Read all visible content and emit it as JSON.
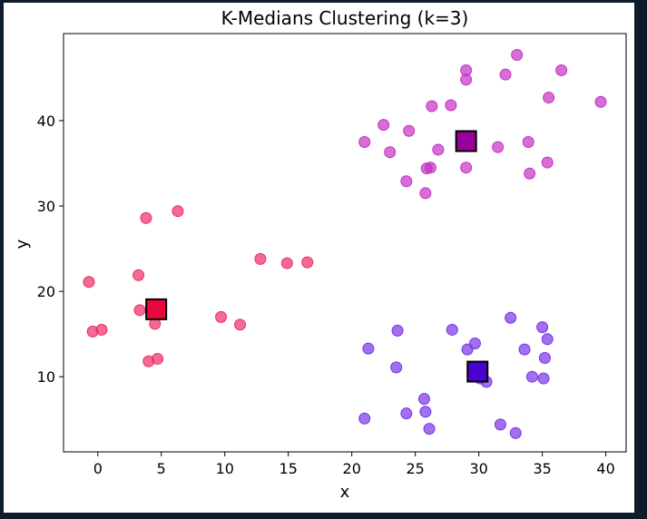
{
  "chart_data": {
    "type": "scatter",
    "title": "K-Medians Clustering (k=3)",
    "xlabel": "x",
    "ylabel": "y",
    "xlim": [
      -2.7,
      41.6
    ],
    "ylim": [
      1.2,
      50.2
    ],
    "xticks": [
      0,
      5,
      10,
      15,
      20,
      25,
      30,
      35,
      40
    ],
    "yticks": [
      10,
      20,
      30,
      40
    ],
    "grid": false,
    "series": [
      {
        "cluster": 1,
        "color": "#ee2c64",
        "points": [
          [
            -0.7,
            21.1
          ],
          [
            -0.4,
            15.3
          ],
          [
            0.3,
            15.5
          ],
          [
            3.2,
            21.9
          ],
          [
            3.3,
            17.8
          ],
          [
            3.8,
            28.6
          ],
          [
            4.0,
            11.8
          ],
          [
            4.5,
            16.2
          ],
          [
            4.7,
            12.1
          ],
          [
            6.3,
            29.4
          ],
          [
            9.7,
            17.0
          ],
          [
            11.2,
            16.1
          ],
          [
            12.8,
            23.8
          ],
          [
            14.9,
            23.3
          ],
          [
            16.5,
            23.4
          ]
        ]
      },
      {
        "cluster": 2,
        "color": "#c530c5",
        "points": [
          [
            21.0,
            37.5
          ],
          [
            22.5,
            39.5
          ],
          [
            23.0,
            36.3
          ],
          [
            24.3,
            32.9
          ],
          [
            24.5,
            38.8
          ],
          [
            25.8,
            31.5
          ],
          [
            25.9,
            34.4
          ],
          [
            26.2,
            34.5
          ],
          [
            26.3,
            41.7
          ],
          [
            26.8,
            36.6
          ],
          [
            27.8,
            41.8
          ],
          [
            29.0,
            45.9
          ],
          [
            29.0,
            44.8
          ],
          [
            29.0,
            34.5
          ],
          [
            31.5,
            36.9
          ],
          [
            32.1,
            45.4
          ],
          [
            33.0,
            47.7
          ],
          [
            33.9,
            37.5
          ],
          [
            34.0,
            33.8
          ],
          [
            35.4,
            35.1
          ],
          [
            35.5,
            42.7
          ],
          [
            36.5,
            45.9
          ],
          [
            39.6,
            42.2
          ]
        ]
      },
      {
        "cluster": 3,
        "color": "#7733e8",
        "points": [
          [
            21.0,
            5.1
          ],
          [
            21.3,
            13.3
          ],
          [
            23.5,
            11.1
          ],
          [
            23.6,
            15.4
          ],
          [
            24.3,
            5.7
          ],
          [
            25.7,
            7.4
          ],
          [
            25.8,
            5.9
          ],
          [
            26.1,
            3.9
          ],
          [
            27.9,
            15.5
          ],
          [
            29.1,
            13.2
          ],
          [
            29.7,
            13.9
          ],
          [
            30.1,
            9.8
          ],
          [
            30.6,
            9.4
          ],
          [
            31.7,
            4.4
          ],
          [
            32.5,
            16.9
          ],
          [
            32.9,
            3.4
          ],
          [
            33.6,
            13.2
          ],
          [
            34.2,
            10.0
          ],
          [
            35.0,
            15.8
          ],
          [
            35.1,
            9.8
          ],
          [
            35.2,
            12.2
          ],
          [
            35.4,
            14.4
          ]
        ]
      }
    ],
    "centroids": [
      {
        "x": 4.6,
        "y": 17.9,
        "color": "#e8083c"
      },
      {
        "x": 29.0,
        "y": 37.6,
        "color": "#990099"
      },
      {
        "x": 29.9,
        "y": 10.6,
        "color": "#4a03cc"
      }
    ]
  }
}
